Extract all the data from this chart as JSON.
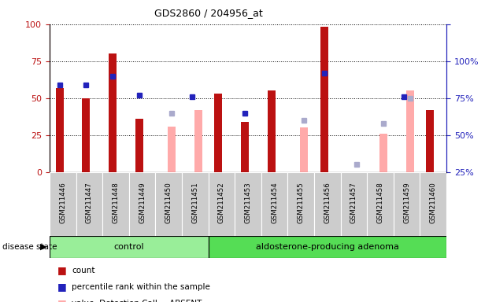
{
  "title": "GDS2860 / 204956_at",
  "samples": [
    "GSM211446",
    "GSM211447",
    "GSM211448",
    "GSM211449",
    "GSM211450",
    "GSM211451",
    "GSM211452",
    "GSM211453",
    "GSM211454",
    "GSM211455",
    "GSM211456",
    "GSM211457",
    "GSM211458",
    "GSM211459",
    "GSM211460"
  ],
  "count": [
    57,
    50,
    80,
    36,
    null,
    null,
    53,
    34,
    55,
    null,
    98,
    null,
    null,
    null,
    42
  ],
  "percentile": [
    59,
    59,
    65,
    52,
    null,
    51,
    null,
    40,
    null,
    null,
    67,
    null,
    null,
    51,
    null
  ],
  "value_absent": [
    null,
    null,
    null,
    null,
    31,
    42,
    null,
    null,
    null,
    30,
    null,
    null,
    26,
    55,
    null
  ],
  "rank_absent": [
    null,
    null,
    null,
    null,
    40,
    null,
    null,
    null,
    null,
    35,
    null,
    5,
    33,
    50,
    null
  ],
  "n_control": 6,
  "n_adenoma": 9,
  "count_color": "#bb1111",
  "percentile_color": "#2222bb",
  "value_absent_color": "#ffaaaa",
  "rank_absent_color": "#aaaacc",
  "bg_control": "#99ee99",
  "bg_adenoma": "#55dd55",
  "right_axis_color": "#2222bb",
  "left_axis_color": "#bb1111",
  "bar_width": 0.3,
  "marker_size": 5
}
